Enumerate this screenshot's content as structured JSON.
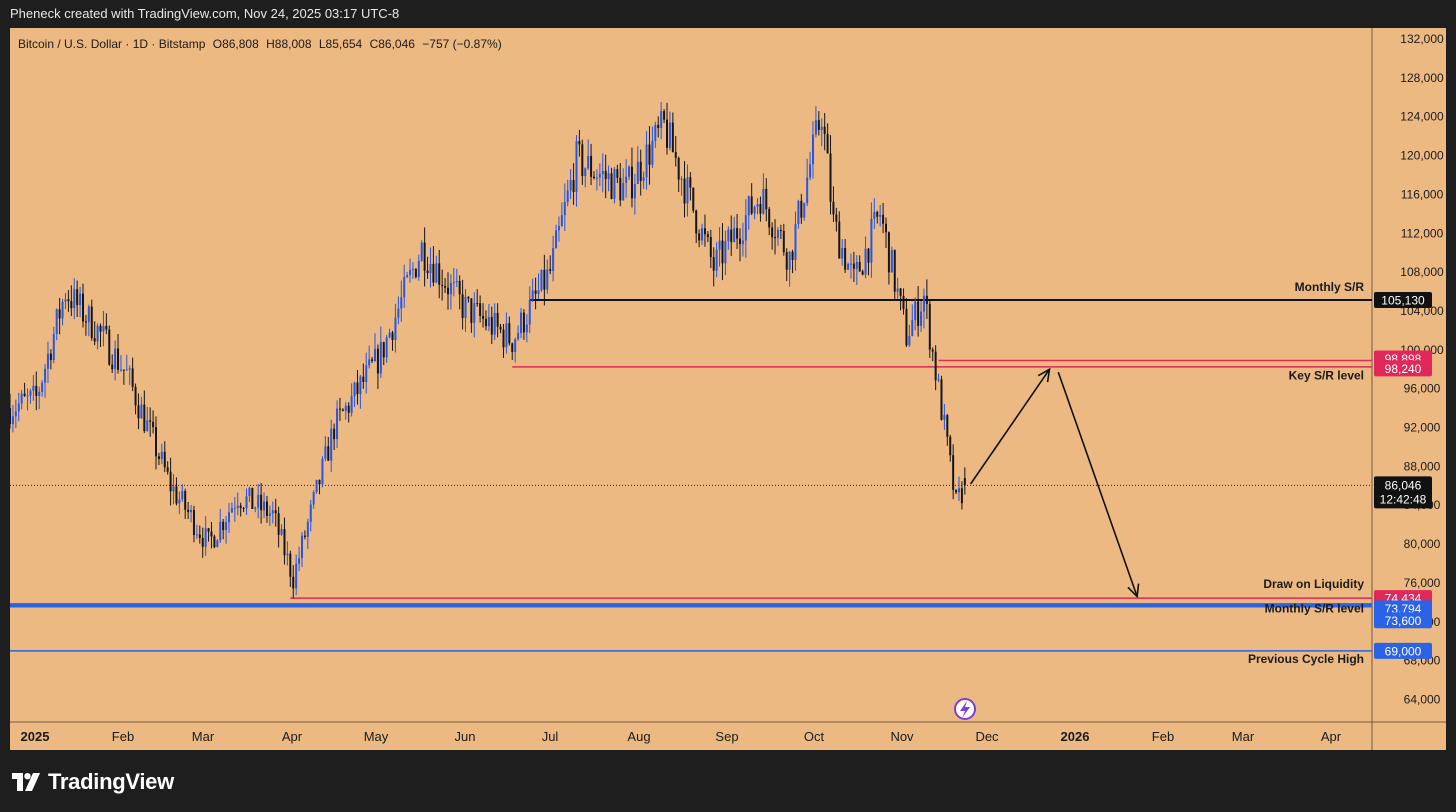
{
  "header": {
    "attribution": "Pheneck created with TradingView.com, Nov 24, 2025 03:17 UTC-8"
  },
  "symbol_bar": {
    "symbol": "Bitcoin / U.S. Dollar · 1D · Bitstamp",
    "open": "O86,808",
    "high": "H88,008",
    "low": "L85,654",
    "close": "C86,046",
    "change": "−757 (−0.87%)"
  },
  "brand": {
    "name": "TradingView"
  },
  "colors": {
    "background": "#edb983",
    "frame": "#1e1e1e",
    "candle_up": "#2457e6",
    "candle_down": "#151515",
    "resistance_red": "#e0285a",
    "support_blue": "#2a63e8",
    "label_black": "#111111"
  },
  "chart_data": {
    "type": "candlestick",
    "title": "Bitcoin / U.S. Dollar · 1D · Bitstamp",
    "timeframe": "1D",
    "x_tick_labels": [
      "2025",
      "Feb",
      "Mar",
      "Apr",
      "May",
      "Jun",
      "Jul",
      "Aug",
      "Sep",
      "Oct",
      "Nov",
      "Dec",
      "2026",
      "Feb",
      "Mar",
      "Apr"
    ],
    "y_tick_labels": [
      "132,000",
      "128,000",
      "124,000",
      "120,000",
      "116,000",
      "112,000",
      "108,000",
      "104,000",
      "100,000",
      "96,000",
      "92,000",
      "88,000",
      "84,000",
      "80,000",
      "76,000",
      "72,000",
      "68,000",
      "64,000"
    ],
    "ylim": [
      61000,
      132500
    ],
    "current_price": {
      "label": "86,046",
      "value": 86046,
      "countdown": "12:42:48"
    },
    "series_close_anchors": [
      {
        "date": "2025-01-01",
        "close": 94000
      },
      {
        "date": "2025-01-10",
        "close": 95000
      },
      {
        "date": "2025-01-20",
        "close": 106000
      },
      {
        "date": "2025-01-31",
        "close": 102000
      },
      {
        "date": "2025-02-10",
        "close": 97500
      },
      {
        "date": "2025-02-25",
        "close": 86000
      },
      {
        "date": "2025-03-10",
        "close": 80000
      },
      {
        "date": "2025-03-20",
        "close": 85000
      },
      {
        "date": "2025-04-01",
        "close": 83000
      },
      {
        "date": "2025-04-08",
        "close": 76500
      },
      {
        "date": "2025-04-22",
        "close": 92000
      },
      {
        "date": "2025-05-08",
        "close": 99500
      },
      {
        "date": "2025-05-22",
        "close": 110500
      },
      {
        "date": "2025-06-05",
        "close": 104500
      },
      {
        "date": "2025-06-22",
        "close": 101000
      },
      {
        "date": "2025-07-05",
        "close": 108000
      },
      {
        "date": "2025-07-14",
        "close": 119500
      },
      {
        "date": "2025-07-31",
        "close": 116500
      },
      {
        "date": "2025-08-13",
        "close": 123000
      },
      {
        "date": "2025-08-30",
        "close": 108500
      },
      {
        "date": "2025-09-15",
        "close": 116000
      },
      {
        "date": "2025-09-25",
        "close": 109500
      },
      {
        "date": "2025-10-06",
        "close": 124500
      },
      {
        "date": "2025-10-10",
        "close": 113000
      },
      {
        "date": "2025-10-17",
        "close": 107000
      },
      {
        "date": "2025-10-26",
        "close": 114000
      },
      {
        "date": "2025-11-04",
        "close": 101500
      },
      {
        "date": "2025-11-10",
        "close": 105500
      },
      {
        "date": "2025-11-18",
        "close": 90000
      },
      {
        "date": "2025-11-21",
        "close": 84000
      },
      {
        "date": "2025-11-24",
        "close": 86046
      }
    ],
    "levels": [
      {
        "name": "Monthly S/R",
        "value": 105130,
        "label": "105,130",
        "color": "#111111",
        "from": "2025-06-28"
      },
      {
        "name": "Key S/R level",
        "value": 98898,
        "label": "98,898",
        "color": "#e0285a",
        "from": "2025-11-15"
      },
      {
        "name": "",
        "value": 98240,
        "label": "98,240",
        "color": "#e0285a",
        "from": "2025-06-22"
      },
      {
        "name": "Draw on Liquidity",
        "value": 74434,
        "label": "74,434",
        "color": "#e0285a",
        "from": "2025-04-07"
      },
      {
        "name": "Monthly S/R level",
        "value": 73794,
        "label": "73,794",
        "color": "#2a63e8",
        "from": "2025-01-01"
      },
      {
        "name": "",
        "value": 73600,
        "label": "73,600",
        "color": "#2a63e8",
        "from": "2025-01-01"
      },
      {
        "name": "Previous Cycle High",
        "value": 69000,
        "label": "69,000",
        "color": "#2a63e8",
        "from": "2025-01-01"
      }
    ],
    "projection": [
      {
        "date": "2025-11-26",
        "value": 86200
      },
      {
        "date": "2025-12-23",
        "value": 98000
      },
      {
        "date": "2025-12-26",
        "value": 97700
      },
      {
        "date": "2026-01-22",
        "value": 74600
      }
    ]
  }
}
